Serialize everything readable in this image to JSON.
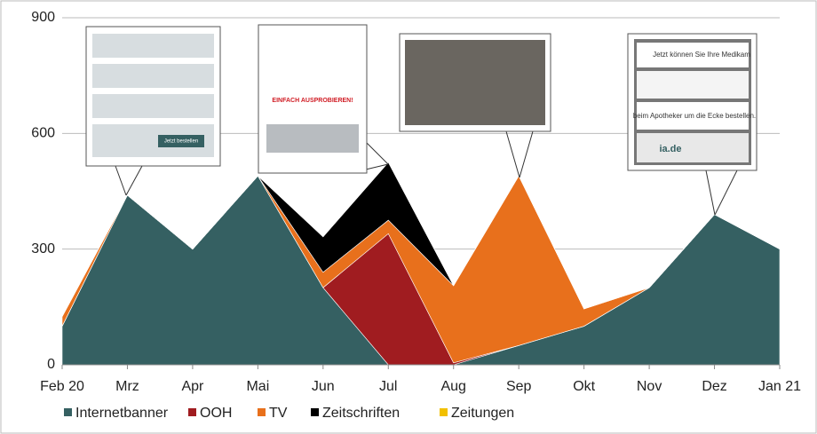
{
  "chart_data": {
    "type": "stacked-area",
    "categories": [
      "Feb 20",
      "Mrz",
      "Apr",
      "Mai",
      "Jun",
      "Jul",
      "Aug",
      "Sep",
      "Okt",
      "Nov",
      "Dez",
      "Jan 21"
    ],
    "series": [
      {
        "name": "Internetbanner",
        "color": "#356062",
        "values": [
          100,
          440,
          300,
          490,
          200,
          0,
          0,
          50,
          100,
          200,
          390,
          300
        ]
      },
      {
        "name": "OOH",
        "color": "#a01c20",
        "values": [
          0,
          0,
          0,
          0,
          0,
          340,
          5,
          0,
          0,
          0,
          0,
          0
        ]
      },
      {
        "name": "TV",
        "color": "#e8701c",
        "values": [
          25,
          0,
          0,
          0,
          40,
          35,
          200,
          440,
          45,
          0,
          0,
          0
        ]
      },
      {
        "name": "Zeitschriften",
        "color": "#000000",
        "values": [
          0,
          0,
          0,
          0,
          92,
          150,
          0,
          0,
          0,
          0,
          0,
          0
        ]
      },
      {
        "name": "Zeitungen",
        "color": "#f2c000",
        "values": [
          0,
          0,
          0,
          0,
          0,
          0,
          0,
          0,
          0,
          0,
          0,
          0
        ]
      }
    ],
    "ylim": [
      0,
      900
    ],
    "yticks": [
      0,
      300,
      600,
      900
    ],
    "grid": true,
    "annotations": [
      "Jetzt bestellen",
      "EINFACH AUSPROBIEREN!",
      "ia.de",
      "Jetzt können Sie Ihre Medikam",
      "beim Apotheker um die Ecke bestellen."
    ]
  }
}
